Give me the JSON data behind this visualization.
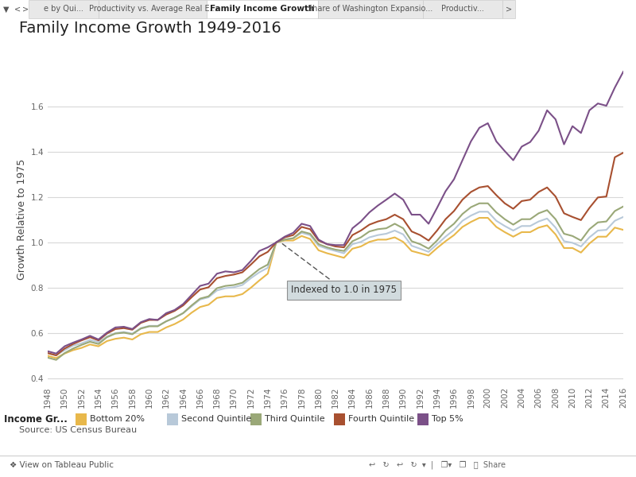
{
  "title": "Family Income Growth 1949-2016",
  "ylabel": "Growth Relative to 1975",
  "source": "Source: US Census Bureau",
  "legend_title": "Income Gr...",
  "annotation_text": "Indexed to 1.0 in 1975",
  "background_color": "#ffffff",
  "plot_bg_color": "#ffffff",
  "grid_color": "#d8d8d8",
  "title_fontsize": 14,
  "axis_fontsize": 9,
  "tick_fontsize": 7.5,
  "ylim": [
    0.38,
    1.82
  ],
  "tab_bar_color": "#e8e8e8",
  "tab_active_color": "#ffffff",
  "bottom_bar_color": "#f0f0f0",
  "series": {
    "Bottom 20%": {
      "color": "#E8B84B",
      "years": [
        1948,
        1949,
        1950,
        1951,
        1952,
        1953,
        1954,
        1955,
        1956,
        1957,
        1958,
        1959,
        1960,
        1961,
        1962,
        1963,
        1964,
        1965,
        1966,
        1967,
        1968,
        1969,
        1970,
        1971,
        1972,
        1973,
        1974,
        1975,
        1976,
        1977,
        1978,
        1979,
        1980,
        1981,
        1982,
        1983,
        1984,
        1985,
        1986,
        1987,
        1988,
        1989,
        1990,
        1991,
        1992,
        1993,
        1994,
        1995,
        1996,
        1997,
        1998,
        1999,
        2000,
        2001,
        2002,
        2003,
        2004,
        2005,
        2006,
        2007,
        2008,
        2009,
        2010,
        2011,
        2012,
        2013,
        2014,
        2015,
        2016
      ],
      "values": [
        0.5,
        0.49,
        0.51,
        0.525,
        0.535,
        0.55,
        0.542,
        0.565,
        0.575,
        0.58,
        0.572,
        0.595,
        0.605,
        0.605,
        0.625,
        0.64,
        0.66,
        0.69,
        0.715,
        0.725,
        0.755,
        0.762,
        0.762,
        0.772,
        0.8,
        0.832,
        0.862,
        1.0,
        1.008,
        1.008,
        1.028,
        1.015,
        0.965,
        0.952,
        0.942,
        0.932,
        0.972,
        0.982,
        1.002,
        1.012,
        1.012,
        1.022,
        1.002,
        0.962,
        0.952,
        0.942,
        0.975,
        1.005,
        1.032,
        1.068,
        1.09,
        1.108,
        1.108,
        1.068,
        1.045,
        1.025,
        1.045,
        1.045,
        1.065,
        1.075,
        1.035,
        0.975,
        0.975,
        0.955,
        0.995,
        1.025,
        1.025,
        1.065,
        1.055
      ]
    },
    "Second Quintile": {
      "color": "#B8C9D9",
      "years": [
        1948,
        1949,
        1950,
        1951,
        1952,
        1953,
        1954,
        1955,
        1956,
        1957,
        1958,
        1959,
        1960,
        1961,
        1962,
        1963,
        1964,
        1965,
        1966,
        1967,
        1968,
        1969,
        1970,
        1971,
        1972,
        1973,
        1974,
        1975,
        1976,
        1977,
        1978,
        1979,
        1980,
        1981,
        1982,
        1983,
        1984,
        1985,
        1986,
        1987,
        1988,
        1989,
        1990,
        1991,
        1992,
        1993,
        1994,
        1995,
        1996,
        1997,
        1998,
        1999,
        2000,
        2001,
        2002,
        2003,
        2004,
        2005,
        2006,
        2007,
        2008,
        2009,
        2010,
        2011,
        2012,
        2013,
        2014,
        2015,
        2016
      ],
      "values": [
        0.512,
        0.502,
        0.525,
        0.545,
        0.555,
        0.57,
        0.56,
        0.585,
        0.6,
        0.605,
        0.598,
        0.622,
        0.632,
        0.632,
        0.652,
        0.668,
        0.688,
        0.718,
        0.748,
        0.758,
        0.788,
        0.798,
        0.802,
        0.812,
        0.842,
        0.868,
        0.888,
        1.0,
        1.012,
        1.018,
        1.042,
        1.032,
        0.985,
        0.972,
        0.962,
        0.952,
        0.992,
        1.002,
        1.022,
        1.032,
        1.038,
        1.052,
        1.035,
        0.985,
        0.972,
        0.958,
        0.992,
        1.025,
        1.055,
        1.095,
        1.118,
        1.135,
        1.135,
        1.095,
        1.072,
        1.052,
        1.072,
        1.072,
        1.092,
        1.105,
        1.065,
        1.005,
        0.998,
        0.982,
        1.022,
        1.052,
        1.055,
        1.095,
        1.112
      ]
    },
    "Third Quintile": {
      "color": "#9aA878",
      "years": [
        1948,
        1949,
        1950,
        1951,
        1952,
        1953,
        1954,
        1955,
        1956,
        1957,
        1958,
        1959,
        1960,
        1961,
        1962,
        1963,
        1964,
        1965,
        1966,
        1967,
        1968,
        1969,
        1970,
        1971,
        1972,
        1973,
        1974,
        1975,
        1976,
        1977,
        1978,
        1979,
        1980,
        1981,
        1982,
        1983,
        1984,
        1985,
        1986,
        1987,
        1988,
        1989,
        1990,
        1991,
        1992,
        1993,
        1994,
        1995,
        1996,
        1997,
        1998,
        1999,
        2000,
        2001,
        2002,
        2003,
        2004,
        2005,
        2006,
        2007,
        2008,
        2009,
        2010,
        2011,
        2012,
        2013,
        2014,
        2015,
        2016
      ],
      "values": [
        0.492,
        0.482,
        0.512,
        0.532,
        0.548,
        0.562,
        0.552,
        0.582,
        0.598,
        0.602,
        0.595,
        0.62,
        0.63,
        0.63,
        0.652,
        0.668,
        0.688,
        0.722,
        0.752,
        0.762,
        0.798,
        0.808,
        0.812,
        0.822,
        0.852,
        0.882,
        0.902,
        1.0,
        1.012,
        1.018,
        1.048,
        1.038,
        0.992,
        0.978,
        0.968,
        0.962,
        1.005,
        1.022,
        1.048,
        1.058,
        1.062,
        1.082,
        1.062,
        1.005,
        0.992,
        0.972,
        1.008,
        1.052,
        1.082,
        1.125,
        1.155,
        1.172,
        1.172,
        1.132,
        1.102,
        1.078,
        1.102,
        1.102,
        1.128,
        1.142,
        1.102,
        1.038,
        1.028,
        1.008,
        1.058,
        1.088,
        1.092,
        1.138,
        1.158
      ]
    },
    "Fourth Quintile": {
      "color": "#A85030",
      "years": [
        1948,
        1949,
        1950,
        1951,
        1952,
        1953,
        1954,
        1955,
        1956,
        1957,
        1958,
        1959,
        1960,
        1961,
        1962,
        1963,
        1964,
        1965,
        1966,
        1967,
        1968,
        1969,
        1970,
        1971,
        1972,
        1973,
        1974,
        1975,
        1976,
        1977,
        1978,
        1979,
        1980,
        1981,
        1982,
        1983,
        1984,
        1985,
        1986,
        1987,
        1988,
        1989,
        1990,
        1991,
        1992,
        1993,
        1994,
        1995,
        1996,
        1997,
        1998,
        1999,
        2000,
        2001,
        2002,
        2003,
        2004,
        2005,
        2006,
        2007,
        2008,
        2009,
        2010,
        2011,
        2012,
        2013,
        2014,
        2015,
        2016
      ],
      "values": [
        0.512,
        0.502,
        0.532,
        0.552,
        0.568,
        0.582,
        0.568,
        0.598,
        0.618,
        0.622,
        0.615,
        0.645,
        0.658,
        0.658,
        0.682,
        0.698,
        0.722,
        0.758,
        0.792,
        0.802,
        0.842,
        0.852,
        0.858,
        0.868,
        0.902,
        0.938,
        0.958,
        1.0,
        1.022,
        1.032,
        1.068,
        1.058,
        1.008,
        0.992,
        0.982,
        0.978,
        1.032,
        1.052,
        1.078,
        1.092,
        1.102,
        1.122,
        1.102,
        1.048,
        1.032,
        1.008,
        1.052,
        1.102,
        1.138,
        1.188,
        1.222,
        1.242,
        1.248,
        1.208,
        1.172,
        1.148,
        1.182,
        1.188,
        1.222,
        1.242,
        1.202,
        1.128,
        1.112,
        1.098,
        1.152,
        1.198,
        1.202,
        1.375,
        1.395
      ]
    },
    "Top 5%": {
      "color": "#7B5088",
      "years": [
        1948,
        1949,
        1950,
        1951,
        1952,
        1953,
        1954,
        1955,
        1956,
        1957,
        1958,
        1959,
        1960,
        1961,
        1962,
        1963,
        1964,
        1965,
        1966,
        1967,
        1968,
        1969,
        1970,
        1971,
        1972,
        1973,
        1974,
        1975,
        1976,
        1977,
        1978,
        1979,
        1980,
        1981,
        1982,
        1983,
        1984,
        1985,
        1986,
        1987,
        1988,
        1989,
        1990,
        1991,
        1992,
        1993,
        1994,
        1995,
        1996,
        1997,
        1998,
        1999,
        2000,
        2001,
        2002,
        2003,
        2004,
        2005,
        2006,
        2007,
        2008,
        2009,
        2010,
        2011,
        2012,
        2013,
        2014,
        2015,
        2016
      ],
      "values": [
        0.52,
        0.51,
        0.542,
        0.558,
        0.572,
        0.588,
        0.572,
        0.602,
        0.625,
        0.628,
        0.618,
        0.648,
        0.662,
        0.658,
        0.688,
        0.702,
        0.728,
        0.768,
        0.808,
        0.818,
        0.862,
        0.872,
        0.868,
        0.878,
        0.918,
        0.962,
        0.978,
        1.0,
        1.025,
        1.042,
        1.082,
        1.072,
        1.012,
        0.992,
        0.988,
        0.988,
        1.062,
        1.092,
        1.132,
        1.162,
        1.188,
        1.215,
        1.188,
        1.122,
        1.122,
        1.082,
        1.152,
        1.225,
        1.278,
        1.362,
        1.445,
        1.505,
        1.525,
        1.445,
        1.402,
        1.362,
        1.422,
        1.442,
        1.492,
        1.582,
        1.542,
        1.432,
        1.512,
        1.482,
        1.582,
        1.612,
        1.602,
        1.682,
        1.752
      ]
    }
  },
  "legend_items": [
    {
      "label": "Bottom 20%",
      "color": "#E8B84B"
    },
    {
      "label": "Second Quintile",
      "color": "#B8C9D9"
    },
    {
      "label": "Third Quintile",
      "color": "#9aA878"
    },
    {
      "label": "Fourth Quintile",
      "color": "#A85030"
    },
    {
      "label": "Top 5%",
      "color": "#7B5088"
    }
  ]
}
